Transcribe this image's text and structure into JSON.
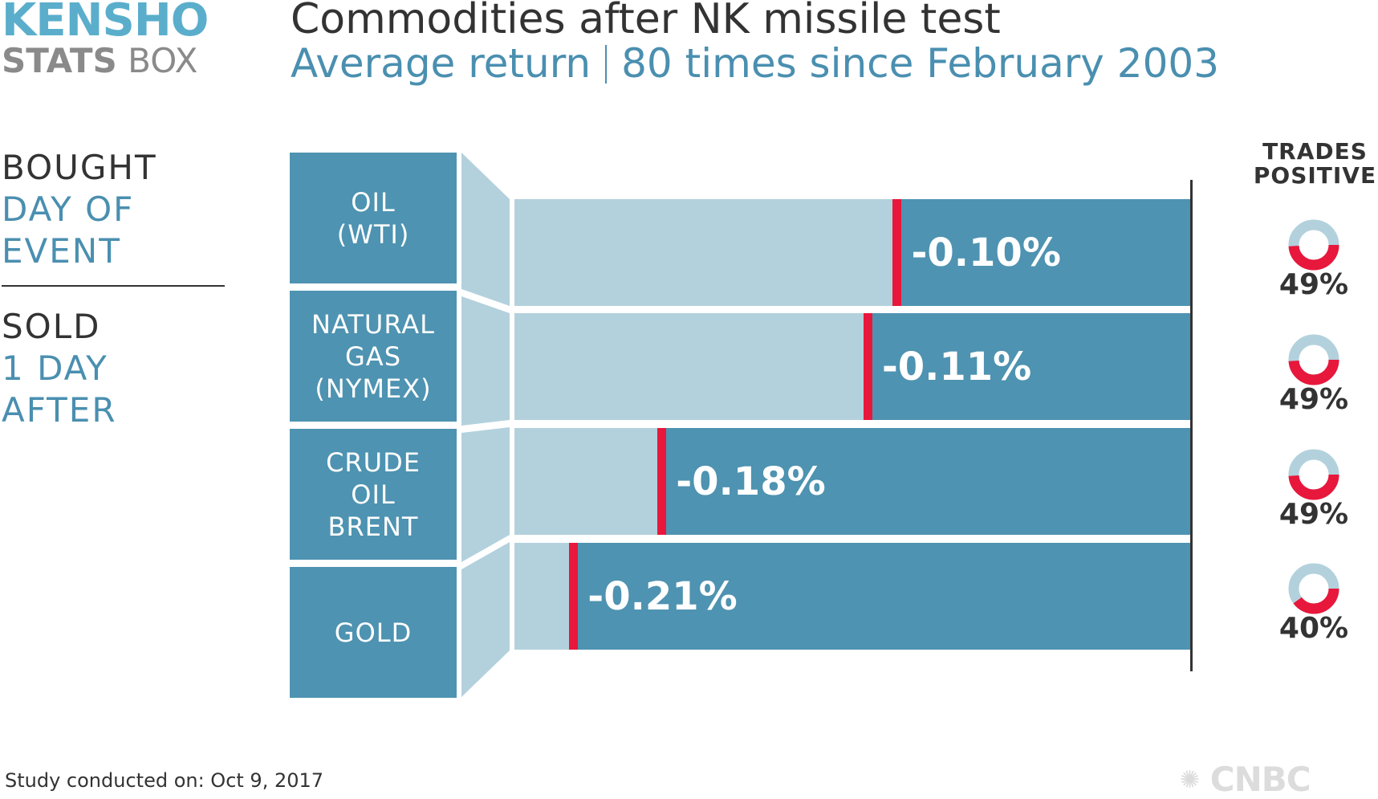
{
  "logo": {
    "line1": "KENSHO",
    "line2_bold": "STATS",
    "line2_light": "BOX"
  },
  "title": "Commodities after NK missile test",
  "subtitle_left": "Average return",
  "subtitle_right": "80 times since February 2003",
  "left_labels": {
    "bought": "BOUGHT",
    "bought_when_1": "DAY OF",
    "bought_when_2": "EVENT",
    "sold": "SOLD",
    "sold_when_1": "1 DAY",
    "sold_when_2": "AFTER"
  },
  "trades_positive_header": "TRADES\nPOSITIVE",
  "footer": "Study conducted on: Oct 9, 2017",
  "brand": "CNBC",
  "colors": {
    "bar_dark": "#4e93b1",
    "bar_light": "#b3d1dd",
    "marker": "#e8173c",
    "text_dark": "#333333",
    "text_blue": "#4a8fb0"
  },
  "chart_data": {
    "type": "bar",
    "orientation": "horizontal",
    "categories": [
      "OIL\n(WTI)",
      "NATURAL\nGAS\n(NYMEX)",
      "CRUDE\nOIL\nBRENT",
      "GOLD"
    ],
    "values": [
      -0.1,
      -0.11,
      -0.18,
      -0.21
    ],
    "value_labels": [
      "-0.10%",
      "-0.11%",
      "-0.18%",
      "-0.21%"
    ],
    "xlim": [
      -0.23,
      0
    ],
    "trades_positive": [
      49,
      49,
      49,
      40
    ],
    "trades_positive_labels": [
      "49%",
      "49%",
      "49%",
      "40%"
    ]
  }
}
